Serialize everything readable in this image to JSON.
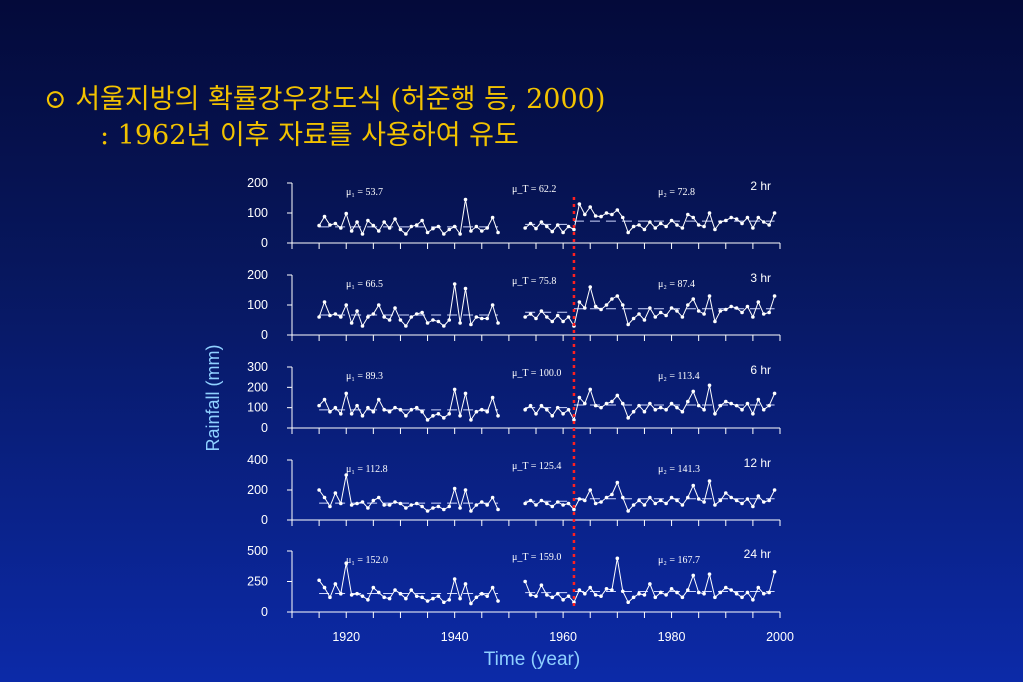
{
  "title": {
    "bullet": "⊙",
    "line1": "서울지방의 확률강우강도식 (허준행 등, 2000)",
    "line2": ": 1962년 이후 자료를 사용하여 유도"
  },
  "chart_data": {
    "type": "line",
    "xlabel": "Time (year)",
    "ylabel": "Rainfall (mm)",
    "xlim": [
      1910,
      2000
    ],
    "x_ticks": [
      1920,
      1940,
      1960,
      1980,
      2000
    ],
    "change_year": 1962,
    "colors": {
      "series": "#ffffff",
      "mean": "#cfd8ff",
      "change": "#ff2020"
    },
    "panels": [
      {
        "name": "2 hr",
        "ylim": [
          0,
          200
        ],
        "yticks": [
          0,
          100,
          200
        ],
        "mu1": "μ₁ = 53.7",
        "muT": "μ_T = 62.2",
        "mu2": "μ₂ = 72.8",
        "mu1_val": 53.7,
        "muT_val": 62.2,
        "mu2_val": 72.8,
        "years": [
          1915,
          1916,
          1917,
          1918,
          1919,
          1920,
          1921,
          1922,
          1923,
          1924,
          1925,
          1926,
          1927,
          1928,
          1929,
          1930,
          1931,
          1932,
          1933,
          1934,
          1935,
          1936,
          1937,
          1938,
          1939,
          1940,
          1941,
          1942,
          1943,
          1944,
          1945,
          1946,
          1947,
          1948,
          1953,
          1954,
          1955,
          1956,
          1957,
          1958,
          1959,
          1960,
          1961,
          1962,
          1963,
          1964,
          1965,
          1966,
          1967,
          1968,
          1969,
          1970,
          1971,
          1972,
          1973,
          1974,
          1975,
          1976,
          1977,
          1978,
          1979,
          1980,
          1981,
          1982,
          1983,
          1984,
          1985,
          1986,
          1987,
          1988,
          1989,
          1990,
          1991,
          1992,
          1993,
          1994,
          1995,
          1996,
          1997,
          1998,
          1999
        ],
        "values": [
          58,
          88,
          60,
          65,
          50,
          98,
          40,
          70,
          30,
          75,
          58,
          40,
          70,
          50,
          80,
          45,
          30,
          55,
          60,
          75,
          35,
          48,
          55,
          30,
          45,
          55,
          30,
          145,
          40,
          55,
          40,
          50,
          85,
          35,
          50,
          65,
          48,
          70,
          55,
          38,
          60,
          35,
          55,
          45,
          130,
          95,
          120,
          90,
          88,
          100,
          95,
          110,
          85,
          35,
          55,
          60,
          45,
          70,
          50,
          65,
          55,
          75,
          60,
          50,
          95,
          85,
          60,
          55,
          100,
          45,
          70,
          75,
          85,
          80,
          65,
          85,
          50,
          85,
          70,
          60,
          100
        ]
      },
      {
        "name": "3 hr",
        "ylim": [
          0,
          200
        ],
        "yticks": [
          0,
          100,
          200
        ],
        "mu1": "μ₁ = 66.5",
        "muT": "μ_T = 75.8",
        "mu2": "μ₂ = 87.4",
        "mu1_val": 66.5,
        "muT_val": 75.8,
        "mu2_val": 87.4,
        "years": [
          1915,
          1916,
          1917,
          1918,
          1919,
          1920,
          1921,
          1922,
          1923,
          1924,
          1925,
          1926,
          1927,
          1928,
          1929,
          1930,
          1931,
          1932,
          1933,
          1934,
          1935,
          1936,
          1937,
          1938,
          1939,
          1940,
          1941,
          1942,
          1943,
          1944,
          1945,
          1946,
          1947,
          1948,
          1953,
          1954,
          1955,
          1956,
          1957,
          1958,
          1959,
          1960,
          1961,
          1962,
          1963,
          1964,
          1965,
          1966,
          1967,
          1968,
          1969,
          1970,
          1971,
          1972,
          1973,
          1974,
          1975,
          1976,
          1977,
          1978,
          1979,
          1980,
          1981,
          1982,
          1983,
          1984,
          1985,
          1986,
          1987,
          1988,
          1989,
          1990,
          1991,
          1992,
          1993,
          1994,
          1995,
          1996,
          1997,
          1998,
          1999
        ],
        "values": [
          60,
          110,
          65,
          70,
          60,
          100,
          40,
          80,
          30,
          60,
          70,
          100,
          60,
          50,
          90,
          50,
          30,
          60,
          70,
          75,
          40,
          50,
          45,
          30,
          50,
          170,
          40,
          155,
          35,
          60,
          55,
          55,
          100,
          40,
          60,
          70,
          55,
          80,
          60,
          45,
          65,
          45,
          60,
          30,
          110,
          90,
          160,
          95,
          85,
          100,
          120,
          130,
          100,
          35,
          55,
          70,
          50,
          90,
          60,
          75,
          65,
          90,
          80,
          60,
          100,
          120,
          80,
          70,
          130,
          45,
          80,
          85,
          95,
          90,
          75,
          95,
          60,
          110,
          70,
          75,
          130
        ]
      },
      {
        "name": "6 hr",
        "ylim": [
          0,
          300
        ],
        "yticks": [
          0,
          100,
          200,
          300
        ],
        "mu1": "μ₁ = 89.3",
        "muT": "μ_T = 100.0",
        "mu2": "μ₂ = 113.4",
        "mu1_val": 89.3,
        "muT_val": 100.0,
        "mu2_val": 113.4,
        "years": [
          1915,
          1916,
          1917,
          1918,
          1919,
          1920,
          1921,
          1922,
          1923,
          1924,
          1925,
          1926,
          1927,
          1928,
          1929,
          1930,
          1931,
          1932,
          1933,
          1934,
          1935,
          1936,
          1937,
          1938,
          1939,
          1940,
          1941,
          1942,
          1943,
          1944,
          1945,
          1946,
          1947,
          1948,
          1953,
          1954,
          1955,
          1956,
          1957,
          1958,
          1959,
          1960,
          1961,
          1962,
          1963,
          1964,
          1965,
          1966,
          1967,
          1968,
          1969,
          1970,
          1971,
          1972,
          1973,
          1974,
          1975,
          1976,
          1977,
          1978,
          1979,
          1980,
          1981,
          1982,
          1983,
          1984,
          1985,
          1986,
          1987,
          1988,
          1989,
          1990,
          1991,
          1992,
          1993,
          1994,
          1995,
          1996,
          1997,
          1998,
          1999
        ],
        "values": [
          110,
          140,
          80,
          100,
          70,
          170,
          70,
          110,
          60,
          100,
          80,
          140,
          90,
          80,
          100,
          90,
          60,
          90,
          100,
          80,
          40,
          60,
          70,
          50,
          70,
          190,
          60,
          170,
          40,
          80,
          90,
          80,
          150,
          60,
          90,
          110,
          70,
          110,
          90,
          60,
          100,
          70,
          90,
          40,
          150,
          120,
          190,
          110,
          100,
          120,
          130,
          160,
          120,
          50,
          80,
          110,
          80,
          120,
          90,
          100,
          90,
          120,
          100,
          80,
          130,
          180,
          110,
          90,
          210,
          70,
          110,
          130,
          120,
          110,
          90,
          120,
          70,
          140,
          90,
          110,
          170
        ]
      },
      {
        "name": "12 hr",
        "ylim": [
          0,
          400
        ],
        "yticks": [
          0,
          200,
          400
        ],
        "mu1": "μ₁ = 112.8",
        "muT": "μ_T = 125.4",
        "mu2": "μ₂ = 141.3",
        "mu1_val": 112.8,
        "muT_val": 125.4,
        "mu2_val": 141.3,
        "years": [
          1915,
          1916,
          1917,
          1918,
          1919,
          1920,
          1921,
          1922,
          1923,
          1924,
          1925,
          1926,
          1927,
          1928,
          1929,
          1930,
          1931,
          1932,
          1933,
          1934,
          1935,
          1936,
          1937,
          1938,
          1939,
          1940,
          1941,
          1942,
          1943,
          1944,
          1945,
          1946,
          1947,
          1948,
          1953,
          1954,
          1955,
          1956,
          1957,
          1958,
          1959,
          1960,
          1961,
          1962,
          1963,
          1964,
          1965,
          1966,
          1967,
          1968,
          1969,
          1970,
          1971,
          1972,
          1973,
          1974,
          1975,
          1976,
          1977,
          1978,
          1979,
          1980,
          1981,
          1982,
          1983,
          1984,
          1985,
          1986,
          1987,
          1988,
          1989,
          1990,
          1991,
          1992,
          1993,
          1994,
          1995,
          1996,
          1997,
          1998,
          1999
        ],
        "values": [
          200,
          150,
          90,
          180,
          110,
          300,
          100,
          110,
          120,
          80,
          130,
          150,
          100,
          100,
          120,
          110,
          80,
          100,
          110,
          90,
          60,
          80,
          90,
          70,
          90,
          210,
          80,
          200,
          60,
          100,
          120,
          100,
          150,
          70,
          110,
          130,
          100,
          130,
          110,
          90,
          120,
          100,
          110,
          70,
          140,
          130,
          200,
          110,
          120,
          150,
          170,
          250,
          150,
          60,
          100,
          130,
          100,
          150,
          110,
          130,
          110,
          150,
          130,
          100,
          150,
          230,
          140,
          120,
          260,
          100,
          130,
          180,
          150,
          130,
          110,
          140,
          90,
          160,
          120,
          130,
          200
        ]
      },
      {
        "name": "24 hr",
        "ylim": [
          0,
          500
        ],
        "yticks": [
          0,
          250,
          500
        ],
        "mu1": "μ₁ = 152.0",
        "muT": "μ_T = 159.0",
        "mu2": "μ₂ = 167.7",
        "mu1_val": 152.0,
        "muT_val": 159.0,
        "mu2_val": 167.7,
        "years": [
          1915,
          1916,
          1917,
          1918,
          1919,
          1920,
          1921,
          1922,
          1923,
          1924,
          1925,
          1926,
          1927,
          1928,
          1929,
          1930,
          1931,
          1932,
          1933,
          1934,
          1935,
          1936,
          1937,
          1938,
          1939,
          1940,
          1941,
          1942,
          1943,
          1944,
          1945,
          1946,
          1947,
          1948,
          1953,
          1954,
          1955,
          1956,
          1957,
          1958,
          1959,
          1960,
          1961,
          1962,
          1963,
          1964,
          1965,
          1966,
          1967,
          1968,
          1969,
          1970,
          1971,
          1972,
          1973,
          1974,
          1975,
          1976,
          1977,
          1978,
          1979,
          1980,
          1981,
          1982,
          1983,
          1984,
          1985,
          1986,
          1987,
          1988,
          1989,
          1990,
          1991,
          1992,
          1993,
          1994,
          1995,
          1996,
          1997,
          1998,
          1999
        ],
        "values": [
          260,
          200,
          120,
          230,
          150,
          400,
          140,
          150,
          130,
          100,
          200,
          160,
          120,
          110,
          180,
          150,
          110,
          180,
          130,
          120,
          90,
          110,
          130,
          80,
          100,
          270,
          110,
          230,
          70,
          120,
          150,
          130,
          200,
          90,
          250,
          140,
          130,
          220,
          140,
          120,
          150,
          100,
          130,
          80,
          180,
          150,
          200,
          140,
          130,
          190,
          180,
          440,
          170,
          80,
          120,
          150,
          140,
          230,
          120,
          160,
          140,
          190,
          160,
          120,
          180,
          300,
          160,
          150,
          310,
          120,
          160,
          200,
          180,
          150,
          120,
          160,
          100,
          200,
          150,
          160,
          330
        ]
      }
    ]
  }
}
